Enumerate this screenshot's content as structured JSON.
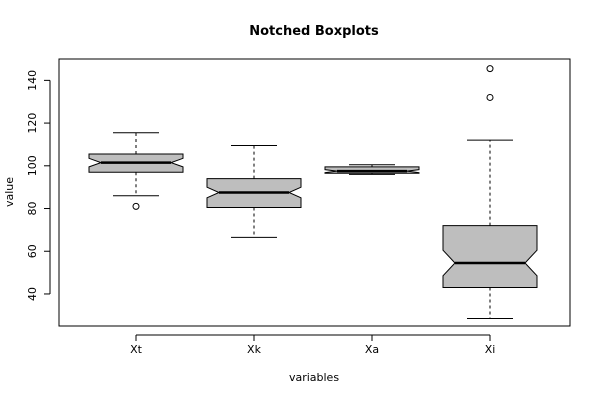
{
  "chart_data": {
    "type": "boxplot",
    "title": "Notched Boxplots",
    "xlabel": "variables",
    "ylabel": "value",
    "ylim": [
      25,
      150
    ],
    "yticks": [
      40,
      60,
      80,
      100,
      120,
      140
    ],
    "box_color": "#bebebe",
    "series": [
      {
        "name": "Xt",
        "whisker_low": 86,
        "q1": 97,
        "notch_low": 99.5,
        "median": 101.5,
        "notch_high": 103.5,
        "q3": 105.5,
        "whisker_high": 115.5,
        "outliers": [
          81
        ]
      },
      {
        "name": "Xk",
        "whisker_low": 66.5,
        "q1": 80.5,
        "notch_low": 85,
        "median": 87.5,
        "notch_high": 90,
        "q3": 94,
        "whisker_high": 109.5,
        "outliers": []
      },
      {
        "name": "Xa",
        "whisker_low": 96,
        "q1": 96.5,
        "notch_low": 96.8,
        "median": 97.5,
        "notch_high": 98.2,
        "q3": 99.5,
        "whisker_high": 100.5,
        "outliers": []
      },
      {
        "name": "Xi",
        "whisker_low": 28.5,
        "q1": 43,
        "notch_low": 48.5,
        "median": 54.5,
        "notch_high": 60.5,
        "q3": 72,
        "whisker_high": 112,
        "outliers": [
          132,
          145.5
        ]
      }
    ]
  }
}
